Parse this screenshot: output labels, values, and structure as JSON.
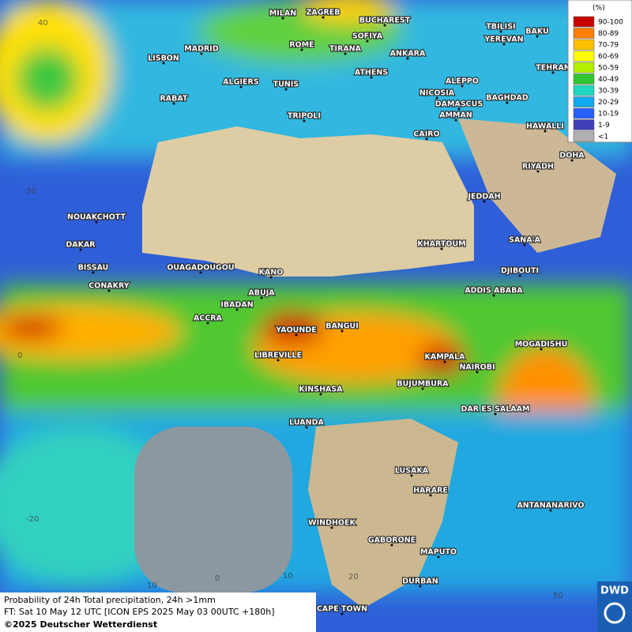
{
  "legend": {
    "title": "(%)",
    "items": [
      {
        "label": "90-100",
        "color": "#c80000"
      },
      {
        "label": "80-89",
        "color": "#ff8000"
      },
      {
        "label": "70-79",
        "color": "#ffc000"
      },
      {
        "label": "60-69",
        "color": "#ffff00"
      },
      {
        "label": "50-59",
        "color": "#b4f000"
      },
      {
        "label": "40-49",
        "color": "#30c830"
      },
      {
        "label": "30-39",
        "color": "#20d8c0"
      },
      {
        "label": "20-29",
        "color": "#10a8f0"
      },
      {
        "label": "10-19",
        "color": "#2860ff"
      },
      {
        "label": "1-9",
        "color": "#4040b8"
      },
      {
        "label": "<1",
        "color": "#b0b0b0"
      }
    ]
  },
  "cities": [
    "MILAN",
    "ZAGREB",
    "BUCHAREST",
    "TBILISI",
    "BAKU",
    "MADRID",
    "ROME",
    "SOFIYA",
    "YEREVAN",
    "LISBON",
    "TIRANA",
    "ANKARA",
    "TEHRAN",
    "ATHENS",
    "ALGIERS",
    "TUNIS",
    "ALEPPO",
    "RABAT",
    "NICOSIA",
    "BAGHDAD",
    "TRIPOLI",
    "DAMASCUS",
    "AMMAN",
    "CAIRO",
    "HAWALLI",
    "DOHA",
    "RIYADH",
    "JEDDAH",
    "NOUAKCHOTT",
    "DAKAR",
    "SANA'A",
    "KHARTOUM",
    "BISSAU",
    "OUAGADOUGOU",
    "KANO",
    "DJIBOUTI",
    "CONAKRY",
    "ABUJA",
    "ADDIS ABABA",
    "IBADAN",
    "ACCRA",
    "BANGUI",
    "YAOUNDE",
    "MOGADISHU",
    "LIBREVILLE",
    "KAMPALA",
    "NAIROBI",
    "BUJUMBURA",
    "KINSHASA",
    "DAR ES SALAAM",
    "LUANDA",
    "LUSAKA",
    "HARARE",
    "ANTANANARIVO",
    "WINDHOEK",
    "GABORONE",
    "MAPUTO",
    "DURBAN",
    "CAPE TOWN"
  ],
  "grid_labels": [
    "40",
    "30",
    "0",
    "-20",
    "0",
    "10",
    "20",
    "10",
    "50"
  ],
  "footer": {
    "line1": "Probability of 24h Total precipitation, 24h >1mm",
    "line2": "FT: Sat 10 May 12 UTC [ICON EPS 2025 May 03 00UTC +180h]",
    "line3": "©2025 Deutscher Wetterdienst"
  },
  "logo": "DWD"
}
